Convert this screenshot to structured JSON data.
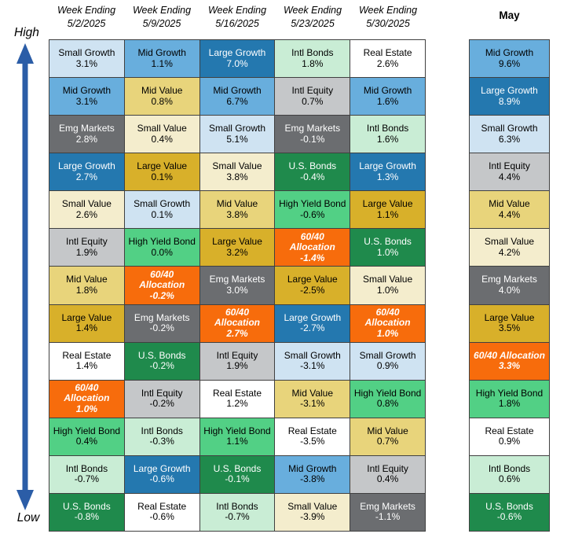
{
  "chart_data": {
    "type": "table",
    "description": "Weekly asset class performance ranking quilt, ranked High to Low",
    "axis": {
      "high_label": "High",
      "low_label": "Low"
    },
    "columns": [
      {
        "header_line1": "Week Ending",
        "header_line2": "5/2/2025",
        "cells": [
          {
            "name": "Small Growth",
            "value": "3.1%",
            "asset": "small_growth"
          },
          {
            "name": "Mid Growth",
            "value": "3.1%",
            "asset": "mid_growth"
          },
          {
            "name": "Emg Markets",
            "value": "2.8%",
            "asset": "emg_markets"
          },
          {
            "name": "Large Growth",
            "value": "2.7%",
            "asset": "large_growth"
          },
          {
            "name": "Small Value",
            "value": "2.6%",
            "asset": "small_value"
          },
          {
            "name": "Intl Equity",
            "value": "1.9%",
            "asset": "intl_equity"
          },
          {
            "name": "Mid Value",
            "value": "1.8%",
            "asset": "mid_value"
          },
          {
            "name": "Large Value",
            "value": "1.4%",
            "asset": "large_value"
          },
          {
            "name": "Real Estate",
            "value": "1.4%",
            "asset": "real_estate"
          },
          {
            "name": "60/40 Allocation",
            "value": "1.0%",
            "asset": "alloc_6040"
          },
          {
            "name": "High Yield Bond",
            "value": "0.4%",
            "asset": "high_yield"
          },
          {
            "name": "Intl Bonds",
            "value": "-0.7%",
            "asset": "intl_bonds"
          },
          {
            "name": "U.S. Bonds",
            "value": "-0.8%",
            "asset": "us_bonds"
          }
        ]
      },
      {
        "header_line1": "Week Ending",
        "header_line2": "5/9/2025",
        "cells": [
          {
            "name": "Mid Growth",
            "value": "1.1%",
            "asset": "mid_growth"
          },
          {
            "name": "Mid Value",
            "value": "0.8%",
            "asset": "mid_value"
          },
          {
            "name": "Small Value",
            "value": "0.4%",
            "asset": "small_value"
          },
          {
            "name": "Large Value",
            "value": "0.1%",
            "asset": "large_value"
          },
          {
            "name": "Small Growth",
            "value": "0.1%",
            "asset": "small_growth"
          },
          {
            "name": "High Yield Bond",
            "value": "0.0%",
            "asset": "high_yield"
          },
          {
            "name": "60/40 Allocation",
            "value": "-0.2%",
            "asset": "alloc_6040"
          },
          {
            "name": "Emg Markets",
            "value": "-0.2%",
            "asset": "emg_markets"
          },
          {
            "name": "U.S. Bonds",
            "value": "-0.2%",
            "asset": "us_bonds"
          },
          {
            "name": "Intl Equity",
            "value": "-0.2%",
            "asset": "intl_equity"
          },
          {
            "name": "Intl Bonds",
            "value": "-0.3%",
            "asset": "intl_bonds"
          },
          {
            "name": "Large Growth",
            "value": "-0.6%",
            "asset": "large_growth"
          },
          {
            "name": "Real Estate",
            "value": "-0.6%",
            "asset": "real_estate"
          }
        ]
      },
      {
        "header_line1": "Week Ending",
        "header_line2": "5/16/2025",
        "cells": [
          {
            "name": "Large Growth",
            "value": "7.0%",
            "asset": "large_growth"
          },
          {
            "name": "Mid Growth",
            "value": "6.7%",
            "asset": "mid_growth"
          },
          {
            "name": "Small Growth",
            "value": "5.1%",
            "asset": "small_growth"
          },
          {
            "name": "Small Value",
            "value": "3.8%",
            "asset": "small_value"
          },
          {
            "name": "Mid Value",
            "value": "3.8%",
            "asset": "mid_value"
          },
          {
            "name": "Large Value",
            "value": "3.2%",
            "asset": "large_value"
          },
          {
            "name": "Emg Markets",
            "value": "3.0%",
            "asset": "emg_markets"
          },
          {
            "name": "60/40 Allocation",
            "value": "2.7%",
            "asset": "alloc_6040"
          },
          {
            "name": "Intl Equity",
            "value": "1.9%",
            "asset": "intl_equity"
          },
          {
            "name": "Real Estate",
            "value": "1.2%",
            "asset": "real_estate"
          },
          {
            "name": "High Yield Bond",
            "value": "1.1%",
            "asset": "high_yield"
          },
          {
            "name": "U.S. Bonds",
            "value": "-0.1%",
            "asset": "us_bonds"
          },
          {
            "name": "Intl Bonds",
            "value": "-0.7%",
            "asset": "intl_bonds"
          }
        ]
      },
      {
        "header_line1": "Week Ending",
        "header_line2": "5/23/2025",
        "cells": [
          {
            "name": "Intl Bonds",
            "value": "1.8%",
            "asset": "intl_bonds"
          },
          {
            "name": "Intl Equity",
            "value": "0.7%",
            "asset": "intl_equity"
          },
          {
            "name": "Emg Markets",
            "value": "-0.1%",
            "asset": "emg_markets"
          },
          {
            "name": "U.S. Bonds",
            "value": "-0.4%",
            "asset": "us_bonds"
          },
          {
            "name": "High Yield Bond",
            "value": "-0.6%",
            "asset": "high_yield"
          },
          {
            "name": "60/40 Allocation",
            "value": "-1.4%",
            "asset": "alloc_6040"
          },
          {
            "name": "Large Value",
            "value": "-2.5%",
            "asset": "large_value"
          },
          {
            "name": "Large Growth",
            "value": "-2.7%",
            "asset": "large_growth"
          },
          {
            "name": "Small Growth",
            "value": "-3.1%",
            "asset": "small_growth"
          },
          {
            "name": "Mid Value",
            "value": "-3.1%",
            "asset": "mid_value"
          },
          {
            "name": "Real Estate",
            "value": "-3.5%",
            "asset": "real_estate"
          },
          {
            "name": "Mid Growth",
            "value": "-3.8%",
            "asset": "mid_growth"
          },
          {
            "name": "Small Value",
            "value": "-3.9%",
            "asset": "small_value"
          }
        ]
      },
      {
        "header_line1": "Week Ending",
        "header_line2": "5/30/2025",
        "cells": [
          {
            "name": "Real Estate",
            "value": "2.6%",
            "asset": "real_estate"
          },
          {
            "name": "Mid Growth",
            "value": "1.6%",
            "asset": "mid_growth"
          },
          {
            "name": "Intl Bonds",
            "value": "1.6%",
            "asset": "intl_bonds"
          },
          {
            "name": "Large Growth",
            "value": "1.3%",
            "asset": "large_growth"
          },
          {
            "name": "Large Value",
            "value": "1.1%",
            "asset": "large_value"
          },
          {
            "name": "U.S. Bonds",
            "value": "1.0%",
            "asset": "us_bonds"
          },
          {
            "name": "Small Value",
            "value": "1.0%",
            "asset": "small_value"
          },
          {
            "name": "60/40 Allocation",
            "value": "1.0%",
            "asset": "alloc_6040"
          },
          {
            "name": "Small Growth",
            "value": "0.9%",
            "asset": "small_growth"
          },
          {
            "name": "High Yield Bond",
            "value": "0.8%",
            "asset": "high_yield"
          },
          {
            "name": "Mid Value",
            "value": "0.7%",
            "asset": "mid_value"
          },
          {
            "name": "Intl Equity",
            "value": "0.4%",
            "asset": "intl_equity"
          },
          {
            "name": "Emg Markets",
            "value": "-1.1%",
            "asset": "emg_markets"
          }
        ]
      }
    ],
    "summary": {
      "header": "May",
      "cells": [
        {
          "name": "Mid Growth",
          "value": "9.6%",
          "asset": "mid_growth"
        },
        {
          "name": "Large Growth",
          "value": "8.9%",
          "asset": "large_growth"
        },
        {
          "name": "Small Growth",
          "value": "6.3%",
          "asset": "small_growth"
        },
        {
          "name": "Intl Equity",
          "value": "4.4%",
          "asset": "intl_equity"
        },
        {
          "name": "Mid Value",
          "value": "4.4%",
          "asset": "mid_value"
        },
        {
          "name": "Small Value",
          "value": "4.2%",
          "asset": "small_value"
        },
        {
          "name": "Emg Markets",
          "value": "4.0%",
          "asset": "emg_markets"
        },
        {
          "name": "Large Value",
          "value": "3.5%",
          "asset": "large_value"
        },
        {
          "name": "60/40 Allocation",
          "value": "3.3%",
          "asset": "alloc_6040"
        },
        {
          "name": "High Yield Bond",
          "value": "1.8%",
          "asset": "high_yield"
        },
        {
          "name": "Real Estate",
          "value": "0.9%",
          "asset": "real_estate"
        },
        {
          "name": "Intl Bonds",
          "value": "0.6%",
          "asset": "intl_bonds"
        },
        {
          "name": "U.S. Bonds",
          "value": "-0.6%",
          "asset": "us_bonds"
        }
      ]
    }
  },
  "colors": {
    "border": "#404040",
    "arrow": "#2b5da7",
    "assets": {
      "small_growth": {
        "bg": "#cfe3f2",
        "text": "#000000"
      },
      "mid_growth": {
        "bg": "#68aedd",
        "text": "#000000"
      },
      "large_growth": {
        "bg": "#2478af",
        "text": "#ffffff"
      },
      "emg_markets": {
        "bg": "#6b6d70",
        "text": "#ffffff"
      },
      "small_value": {
        "bg": "#f4edcd",
        "text": "#000000"
      },
      "intl_equity": {
        "bg": "#c5c7c9",
        "text": "#000000"
      },
      "mid_value": {
        "bg": "#e8d47b",
        "text": "#000000"
      },
      "large_value": {
        "bg": "#d8b02a",
        "text": "#000000"
      },
      "real_estate": {
        "bg": "#ffffff",
        "text": "#000000"
      },
      "alloc_6040": {
        "bg": "#f76c0c",
        "text": "#ffffff"
      },
      "high_yield": {
        "bg": "#52d085",
        "text": "#000000"
      },
      "intl_bonds": {
        "bg": "#c9edd5",
        "text": "#000000"
      },
      "us_bonds": {
        "bg": "#1f8a4c",
        "text": "#ffffff"
      }
    }
  }
}
